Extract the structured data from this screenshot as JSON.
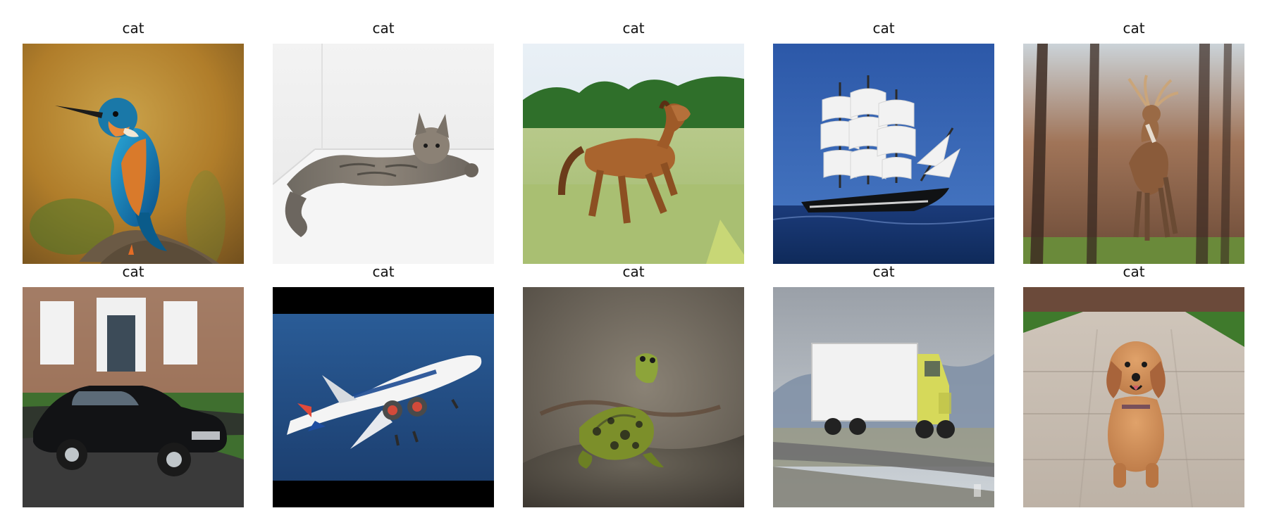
{
  "grid": {
    "panels": [
      {
        "label": "cat",
        "scene": "kingfisher-bird"
      },
      {
        "label": "cat",
        "scene": "tabby-cat-lying-on-step"
      },
      {
        "label": "cat",
        "scene": "brown-horse-running-in-field"
      },
      {
        "label": "cat",
        "scene": "tall-sailing-ship-on-sea"
      },
      {
        "label": "cat",
        "scene": "deer-standing-in-forest"
      },
      {
        "label": "cat",
        "scene": "black-sedan-in-front-of-house"
      },
      {
        "label": "cat",
        "scene": "white-passenger-airplane-in-sky"
      },
      {
        "label": "cat",
        "scene": "green-spotted-frog-on-rock"
      },
      {
        "label": "cat",
        "scene": "yellow-cab-semi-truck-on-road"
      },
      {
        "label": "cat",
        "scene": "golden-retriever-puppy-on-path"
      }
    ]
  },
  "colors": {
    "figure_background": "#ffffff",
    "title_text": "#111111"
  }
}
